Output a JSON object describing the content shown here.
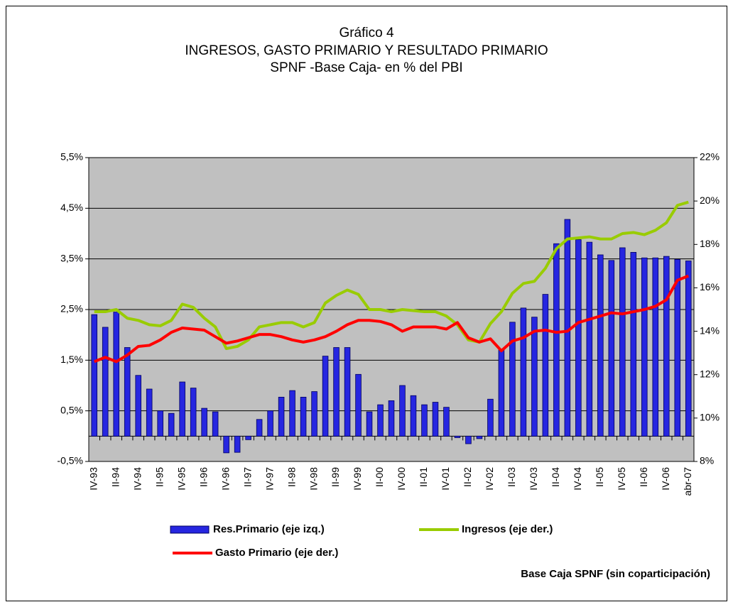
{
  "chart_data": {
    "type": "bar",
    "title": "Gráfico 4",
    "subtitle": "INGRESOS, GASTO PRIMARIO Y RESULTADO PRIMARIO",
    "subtitle2": "SPNF -Base Caja- en % del PBI",
    "note": "Base Caja SPNF (sin coparticipación)",
    "categories": [
      "IV-93",
      null,
      "II-94",
      null,
      "IV-94",
      null,
      "II-95",
      null,
      "IV-95",
      null,
      "II-96",
      null,
      "IV-96",
      null,
      "II-97",
      null,
      "IV-97",
      null,
      "II-98",
      null,
      "IV-98",
      null,
      "II-99",
      null,
      "IV-99",
      null,
      "II-00",
      null,
      "IV-00",
      null,
      "II-01",
      null,
      "IV-01",
      null,
      "II-02",
      null,
      "IV-02",
      null,
      "II-03",
      null,
      "IV-03",
      null,
      "II-04",
      null,
      "IV-04",
      null,
      "II-05",
      null,
      "IV-05",
      null,
      "II-06",
      null,
      "IV-06",
      null,
      "abr-07"
    ],
    "series": [
      {
        "name": "Res.Primario (eje izq.)",
        "type": "bar",
        "color": "#2626e0",
        "values": [
          2.4,
          2.15,
          2.45,
          1.75,
          1.2,
          0.93,
          0.5,
          0.45,
          1.07,
          0.95,
          0.55,
          0.48,
          -0.33,
          -0.32,
          -0.07,
          0.33,
          0.5,
          0.77,
          0.9,
          0.77,
          0.88,
          1.58,
          1.75,
          1.75,
          1.22,
          0.48,
          0.62,
          0.7,
          1.0,
          0.8,
          0.62,
          0.67,
          0.57,
          -0.03,
          -0.15,
          -0.05,
          0.73,
          1.7,
          2.25,
          2.53,
          2.35,
          2.8,
          3.8,
          4.28,
          3.88,
          3.83,
          3.58,
          3.47,
          3.72,
          3.63,
          3.52,
          3.52,
          3.55,
          3.49,
          3.46
        ]
      },
      {
        "name": "Ingresos (eje der.)",
        "type": "line",
        "axis": "y2",
        "color": "#99cc00",
        "values": [
          14.9,
          14.9,
          15.0,
          14.6,
          14.5,
          14.3,
          14.25,
          14.5,
          15.25,
          15.1,
          14.6,
          14.2,
          13.2,
          13.3,
          13.6,
          14.2,
          14.3,
          14.4,
          14.4,
          14.2,
          14.4,
          15.3,
          15.65,
          15.9,
          15.7,
          15.0,
          15.0,
          14.9,
          15.0,
          14.95,
          14.9,
          14.9,
          14.7,
          14.3,
          13.6,
          13.5,
          14.35,
          14.9,
          15.75,
          16.2,
          16.3,
          16.9,
          17.8,
          18.25,
          18.3,
          18.35,
          18.25,
          18.25,
          18.5,
          18.55,
          18.45,
          18.65,
          19.0,
          19.8,
          19.95
        ]
      },
      {
        "name": "Gasto Primario (eje der.)",
        "type": "line",
        "axis": "y2",
        "color": "#ff0000",
        "values": [
          12.6,
          12.8,
          12.6,
          12.9,
          13.3,
          13.35,
          13.6,
          13.95,
          14.15,
          14.1,
          14.05,
          13.75,
          13.45,
          13.55,
          13.7,
          13.85,
          13.85,
          13.75,
          13.6,
          13.5,
          13.6,
          13.75,
          14.0,
          14.3,
          14.5,
          14.5,
          14.45,
          14.3,
          14.0,
          14.2,
          14.2,
          14.2,
          14.1,
          14.4,
          13.7,
          13.5,
          13.65,
          13.1,
          13.55,
          13.7,
          14.0,
          14.05,
          13.95,
          14.0,
          14.4,
          14.55,
          14.7,
          14.85,
          14.8,
          14.9,
          15.0,
          15.15,
          15.45,
          16.35,
          16.55
        ]
      }
    ],
    "ylim": [
      -0.5,
      5.5
    ],
    "yticks": [
      {
        "value": -0.5,
        "label": "-0,5%"
      },
      {
        "value": 0.5,
        "label": "0,5%"
      },
      {
        "value": 1.5,
        "label": "1,5%"
      },
      {
        "value": 2.5,
        "label": "2,5%"
      },
      {
        "value": 3.5,
        "label": "3,5%"
      },
      {
        "value": 4.5,
        "label": "4,5%"
      },
      {
        "value": 5.5,
        "label": "5,5%"
      }
    ],
    "y2lim": [
      8,
      22
    ],
    "y2ticks": [
      {
        "value": 8,
        "label": "8%"
      },
      {
        "value": 10,
        "label": "10%"
      },
      {
        "value": 12,
        "label": "12%"
      },
      {
        "value": 14,
        "label": "14%"
      },
      {
        "value": 16,
        "label": "16%"
      },
      {
        "value": 18,
        "label": "18%"
      },
      {
        "value": 20,
        "label": "20%"
      },
      {
        "value": 22,
        "label": "22%"
      }
    ],
    "grid": true,
    "background": "#c0c0c0"
  }
}
